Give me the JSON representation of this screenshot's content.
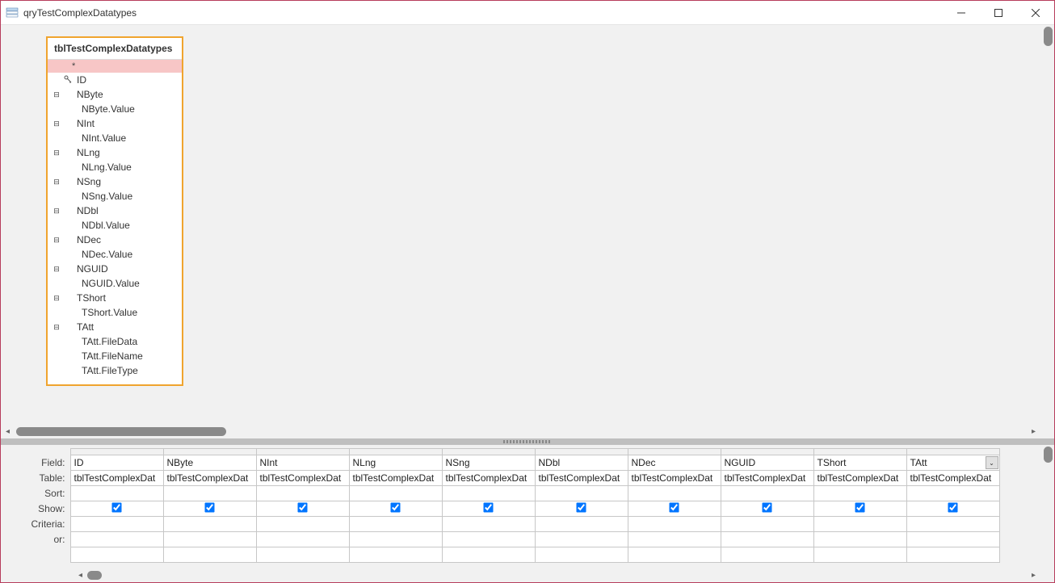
{
  "window": {
    "title": "qryTestComplexDatatypes"
  },
  "table_source": {
    "title": "tblTestComplexDatatypes",
    "star": "*",
    "fields": [
      {
        "name": "ID",
        "key": true,
        "children": []
      },
      {
        "name": "NByte",
        "children": [
          "NByte.Value"
        ]
      },
      {
        "name": "NInt",
        "children": [
          "NInt.Value"
        ]
      },
      {
        "name": "NLng",
        "children": [
          "NLng.Value"
        ]
      },
      {
        "name": "NSng",
        "children": [
          "NSng.Value"
        ]
      },
      {
        "name": "NDbl",
        "children": [
          "NDbl.Value"
        ]
      },
      {
        "name": "NDec",
        "children": [
          "NDec.Value"
        ]
      },
      {
        "name": "NGUID",
        "children": [
          "NGUID.Value"
        ]
      },
      {
        "name": "TShort",
        "children": [
          "TShort.Value"
        ]
      },
      {
        "name": "TAtt",
        "children": [
          "TAtt.FileData",
          "TAtt.FileName",
          "TAtt.FileType"
        ]
      }
    ]
  },
  "grid": {
    "row_labels": {
      "field": "Field:",
      "table": "Table:",
      "sort": "Sort:",
      "show": "Show:",
      "criteria": "Criteria:",
      "or": "or:"
    },
    "columns": [
      {
        "field": "ID",
        "table": "tblTestComplexDat",
        "show": true,
        "active": false
      },
      {
        "field": "NByte",
        "table": "tblTestComplexDat",
        "show": true,
        "active": false
      },
      {
        "field": "NInt",
        "table": "tblTestComplexDat",
        "show": true,
        "active": false
      },
      {
        "field": "NLng",
        "table": "tblTestComplexDat",
        "show": true,
        "active": false
      },
      {
        "field": "NSng",
        "table": "tblTestComplexDat",
        "show": true,
        "active": false
      },
      {
        "field": "NDbl",
        "table": "tblTestComplexDat",
        "show": true,
        "active": false
      },
      {
        "field": "NDec",
        "table": "tblTestComplexDat",
        "show": true,
        "active": false
      },
      {
        "field": "NGUID",
        "table": "tblTestComplexDat",
        "show": true,
        "active": false
      },
      {
        "field": "TShort",
        "table": "tblTestComplexDat",
        "show": true,
        "active": false
      },
      {
        "field": "TAtt",
        "table": "tblTestComplexDat",
        "show": true,
        "active": true
      }
    ]
  },
  "colors": {
    "window_border": "#b73d5c",
    "tablebox_border": "#f0a42e",
    "star_row_bg": "#f7c6c6",
    "pane_bg": "#f1f1f1",
    "grid_border": "#c7c7c7",
    "scrollbar_thumb": "#8a8a8a"
  }
}
